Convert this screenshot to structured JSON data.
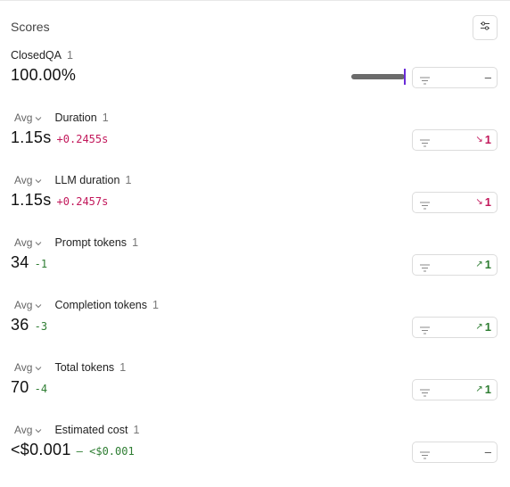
{
  "header": {
    "title": "Scores"
  },
  "closedqa": {
    "name": "ClosedQA",
    "count": "1",
    "value": "100.00%",
    "progress": 1.0,
    "badge": "–"
  },
  "metrics": [
    {
      "agg": "Avg",
      "name": "Duration",
      "count": "1",
      "value": "1.15s",
      "delta": "+0.2455s",
      "delta_type": "up",
      "badge_icon": "↘",
      "badge_value": "1",
      "badge_type": "bad"
    },
    {
      "agg": "Avg",
      "name": "LLM duration",
      "count": "1",
      "value": "1.15s",
      "delta": "+0.2457s",
      "delta_type": "up",
      "badge_icon": "↘",
      "badge_value": "1",
      "badge_type": "bad"
    },
    {
      "agg": "Avg",
      "name": "Prompt tokens",
      "count": "1",
      "value": "34",
      "delta": "-1",
      "delta_type": "down",
      "badge_icon": "↗",
      "badge_value": "1",
      "badge_type": "good"
    },
    {
      "agg": "Avg",
      "name": "Completion tokens",
      "count": "1",
      "value": "36",
      "delta": "-3",
      "delta_type": "down",
      "badge_icon": "↗",
      "badge_value": "1",
      "badge_type": "good"
    },
    {
      "agg": "Avg",
      "name": "Total tokens",
      "count": "1",
      "value": "70",
      "delta": "-4",
      "delta_type": "down",
      "badge_icon": "↗",
      "badge_value": "1",
      "badge_type": "good"
    },
    {
      "agg": "Avg",
      "name": "Estimated cost",
      "count": "1",
      "value": "<$0.001",
      "delta": "– <$0.001",
      "delta_type": "neutral",
      "badge_icon": "",
      "badge_value": "–",
      "badge_type": "dash"
    }
  ],
  "colors": {
    "bad": "#c2185b",
    "good": "#2e7d32",
    "accent": "#6a2bd8"
  },
  "icons": {
    "settings": "sliders-icon",
    "filter": "filter-icon",
    "chevron": "chevron-down-icon"
  }
}
